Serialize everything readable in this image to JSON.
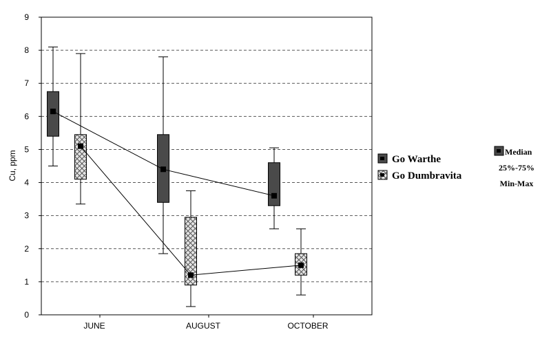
{
  "chart_data": {
    "type": "box",
    "ylabel": "Cu, ppm",
    "ylim": [
      0,
      9
    ],
    "yticks": [
      0,
      1,
      2,
      3,
      4,
      5,
      6,
      7,
      8,
      9
    ],
    "grid": "horizontal-dashed",
    "categories": [
      "JUNE",
      "AUGUST",
      "OCTOBER"
    ],
    "series": [
      {
        "name": "Go Warthe",
        "color": "#4a4a4a",
        "pattern": "solid",
        "boxes": [
          {
            "category": "JUNE",
            "min": 4.5,
            "q1": 5.4,
            "median": 6.15,
            "q3": 6.75,
            "max": 8.1
          },
          {
            "category": "AUGUST",
            "min": 1.85,
            "q1": 3.4,
            "median": 4.4,
            "q3": 5.45,
            "max": 7.8
          },
          {
            "category": "OCTOBER",
            "min": 2.6,
            "q1": 3.3,
            "median": 3.6,
            "q3": 4.6,
            "max": 5.05
          }
        ]
      },
      {
        "name": "Go Dumbravita",
        "color": "#c8c8c8",
        "pattern": "crosshatch",
        "boxes": [
          {
            "category": "JUNE",
            "min": 3.35,
            "q1": 4.1,
            "median": 5.1,
            "q3": 5.45,
            "max": 7.9
          },
          {
            "category": "AUGUST",
            "min": 0.25,
            "q1": 0.9,
            "median": 1.2,
            "q3": 2.95,
            "max": 3.75
          },
          {
            "category": "OCTOBER",
            "min": 0.6,
            "q1": 1.2,
            "median": 1.5,
            "q3": 1.85,
            "max": 2.6
          }
        ]
      }
    ],
    "legend": {
      "series_labels": [
        "Go Warthe",
        "Go Dumbravita"
      ],
      "stat_labels": [
        "Median",
        "25%-75%",
        "Min-Max"
      ]
    }
  }
}
